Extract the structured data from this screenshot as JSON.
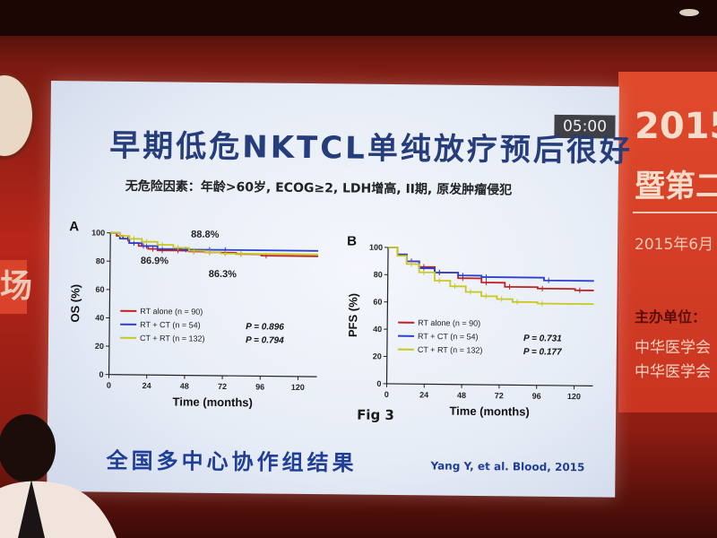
{
  "timer": "05:00",
  "slide": {
    "title": "早期低危NKTCL单纯放疗预后很好",
    "subtitle": "无危险因素：年龄>60岁, ECOG≥2, LDH增高, II期, 原发肿瘤侵犯",
    "figure_label": "Fig 3",
    "summary": "全国多中心协作组结果",
    "citation": "Yang Y, et al. Blood, 2015"
  },
  "backdrop": {
    "line1": "2015",
    "line2": "暨第二",
    "date": "2015年6月",
    "host_label": "主办单位：",
    "org1": "中华医学会",
    "org2": "中华医学会"
  },
  "chart_data": [
    {
      "type": "line",
      "panel": "A",
      "ylabel": "OS (%)",
      "xlabel": "Time (months)",
      "xticks": [
        0,
        24,
        48,
        72,
        96,
        120
      ],
      "yticks": [
        0,
        20,
        40,
        60,
        80,
        100
      ],
      "xlim": [
        0,
        132
      ],
      "ylim": [
        0,
        100
      ],
      "annotations": [
        "88.8%",
        "86.9%",
        "86.3%"
      ],
      "series": [
        {
          "name": "RT alone (n = 90)",
          "color": "#c02020",
          "x": [
            0,
            4,
            8,
            12,
            18,
            24,
            30,
            40,
            50,
            60,
            70,
            80,
            96,
            132
          ],
          "y": [
            100,
            98,
            96,
            93,
            91,
            89,
            88,
            88,
            87.5,
            87,
            86.9,
            86,
            85,
            85
          ]
        },
        {
          "name": "RT + CT (n = 54)",
          "color": "#2b3fd0",
          "p": "P = 0.896",
          "x": [
            0,
            6,
            12,
            20,
            30,
            45,
            60,
            70,
            132
          ],
          "y": [
            100,
            96,
            93,
            91,
            89,
            88.8,
            88.8,
            88.8,
            88.8
          ]
        },
        {
          "name": "CT + RT (n = 132)",
          "color": "#c8c820",
          "p": "P = 0.794",
          "x": [
            0,
            6,
            12,
            20,
            30,
            40,
            50,
            60,
            70,
            80,
            132
          ],
          "y": [
            100,
            98,
            96,
            94,
            92,
            90,
            88,
            87,
            86.3,
            86.3,
            86.3
          ]
        }
      ]
    },
    {
      "type": "line",
      "panel": "B",
      "ylabel": "PFS (%)",
      "xlabel": "Time (months)",
      "xticks": [
        0,
        24,
        48,
        72,
        96,
        120
      ],
      "yticks": [
        0,
        20,
        40,
        60,
        80,
        100
      ],
      "xlim": [
        0,
        132
      ],
      "ylim": [
        0,
        100
      ],
      "series": [
        {
          "name": "RT alone (n = 90)",
          "color": "#c02020",
          "x": [
            0,
            6,
            12,
            20,
            30,
            45,
            60,
            75,
            96,
            120,
            132
          ],
          "y": [
            100,
            95,
            90,
            86,
            82,
            78,
            75,
            72,
            71,
            70,
            70
          ]
        },
        {
          "name": "RT + CT (n = 54)",
          "color": "#2b3fd0",
          "p": "P = 0.731",
          "x": [
            0,
            6,
            12,
            20,
            30,
            45,
            60,
            100,
            132
          ],
          "y": [
            100,
            95,
            90,
            85,
            82,
            80,
            79,
            77,
            77
          ]
        },
        {
          "name": "CT + RT (n = 132)",
          "color": "#c8c820",
          "p": "P = 0.177",
          "x": [
            0,
            6,
            12,
            20,
            30,
            40,
            50,
            60,
            70,
            80,
            96,
            132
          ],
          "y": [
            100,
            94,
            88,
            82,
            76,
            72,
            68,
            65,
            63,
            61,
            60,
            60
          ]
        }
      ]
    }
  ]
}
